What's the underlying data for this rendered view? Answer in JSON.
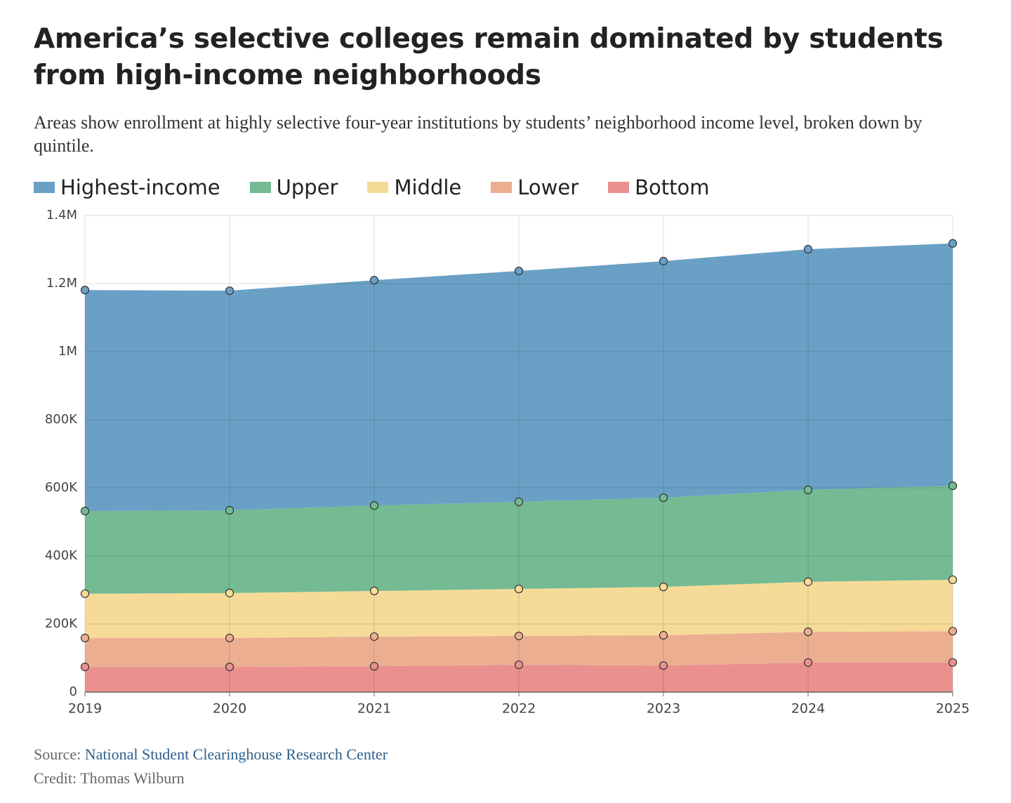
{
  "chart_data": {
    "type": "stacked-area",
    "title": "America’s selective colleges remain dominated by students from high-income neighborhoods",
    "subtitle": "Areas show enrollment at highly selective four-year institutions by students’ neighborhood income level, broken down by quintile.",
    "x": [
      2019,
      2020,
      2021,
      2022,
      2023,
      2024,
      2025
    ],
    "xlim": [
      2019,
      2025
    ],
    "xticks": [
      2019,
      2020,
      2021,
      2022,
      2023,
      2024,
      2025
    ],
    "ylim": [
      0,
      1400000
    ],
    "yticks": [
      0,
      {
        "value": 200000,
        "label": "200K"
      },
      {
        "value": 400000,
        "label": "400K"
      },
      {
        "value": 600000,
        "label": "600K"
      },
      {
        "value": 800000,
        "label": "800K"
      },
      {
        "value": 1000000,
        "label": "1M"
      },
      {
        "value": 1200000,
        "label": "1.2M"
      },
      {
        "value": 1400000,
        "label": "1.4M"
      }
    ],
    "grid": true,
    "series": [
      {
        "name": "Highest-income",
        "color": "#6aa0c6",
        "values": [
          649000,
          645000,
          662000,
          678000,
          695000,
          707000,
          712000
        ]
      },
      {
        "name": "Upper",
        "color": "#74ba92",
        "values": [
          243000,
          243000,
          251000,
          256000,
          262000,
          270000,
          276000
        ]
      },
      {
        "name": "Middle",
        "color": "#f6db98",
        "values": [
          130000,
          132000,
          134000,
          138000,
          142000,
          147000,
          151000
        ]
      },
      {
        "name": "Lower",
        "color": "#ecae91",
        "values": [
          85000,
          85000,
          87000,
          85000,
          89000,
          90000,
          92000
        ]
      },
      {
        "name": "Bottom",
        "color": "#ea9190",
        "values": [
          74000,
          74000,
          76000,
          80000,
          78000,
          87000,
          87000
        ]
      }
    ]
  },
  "source": {
    "label": "Source:",
    "name": "National Student Clearinghouse Research Center"
  },
  "credit": "Credit: Thomas Wilburn"
}
